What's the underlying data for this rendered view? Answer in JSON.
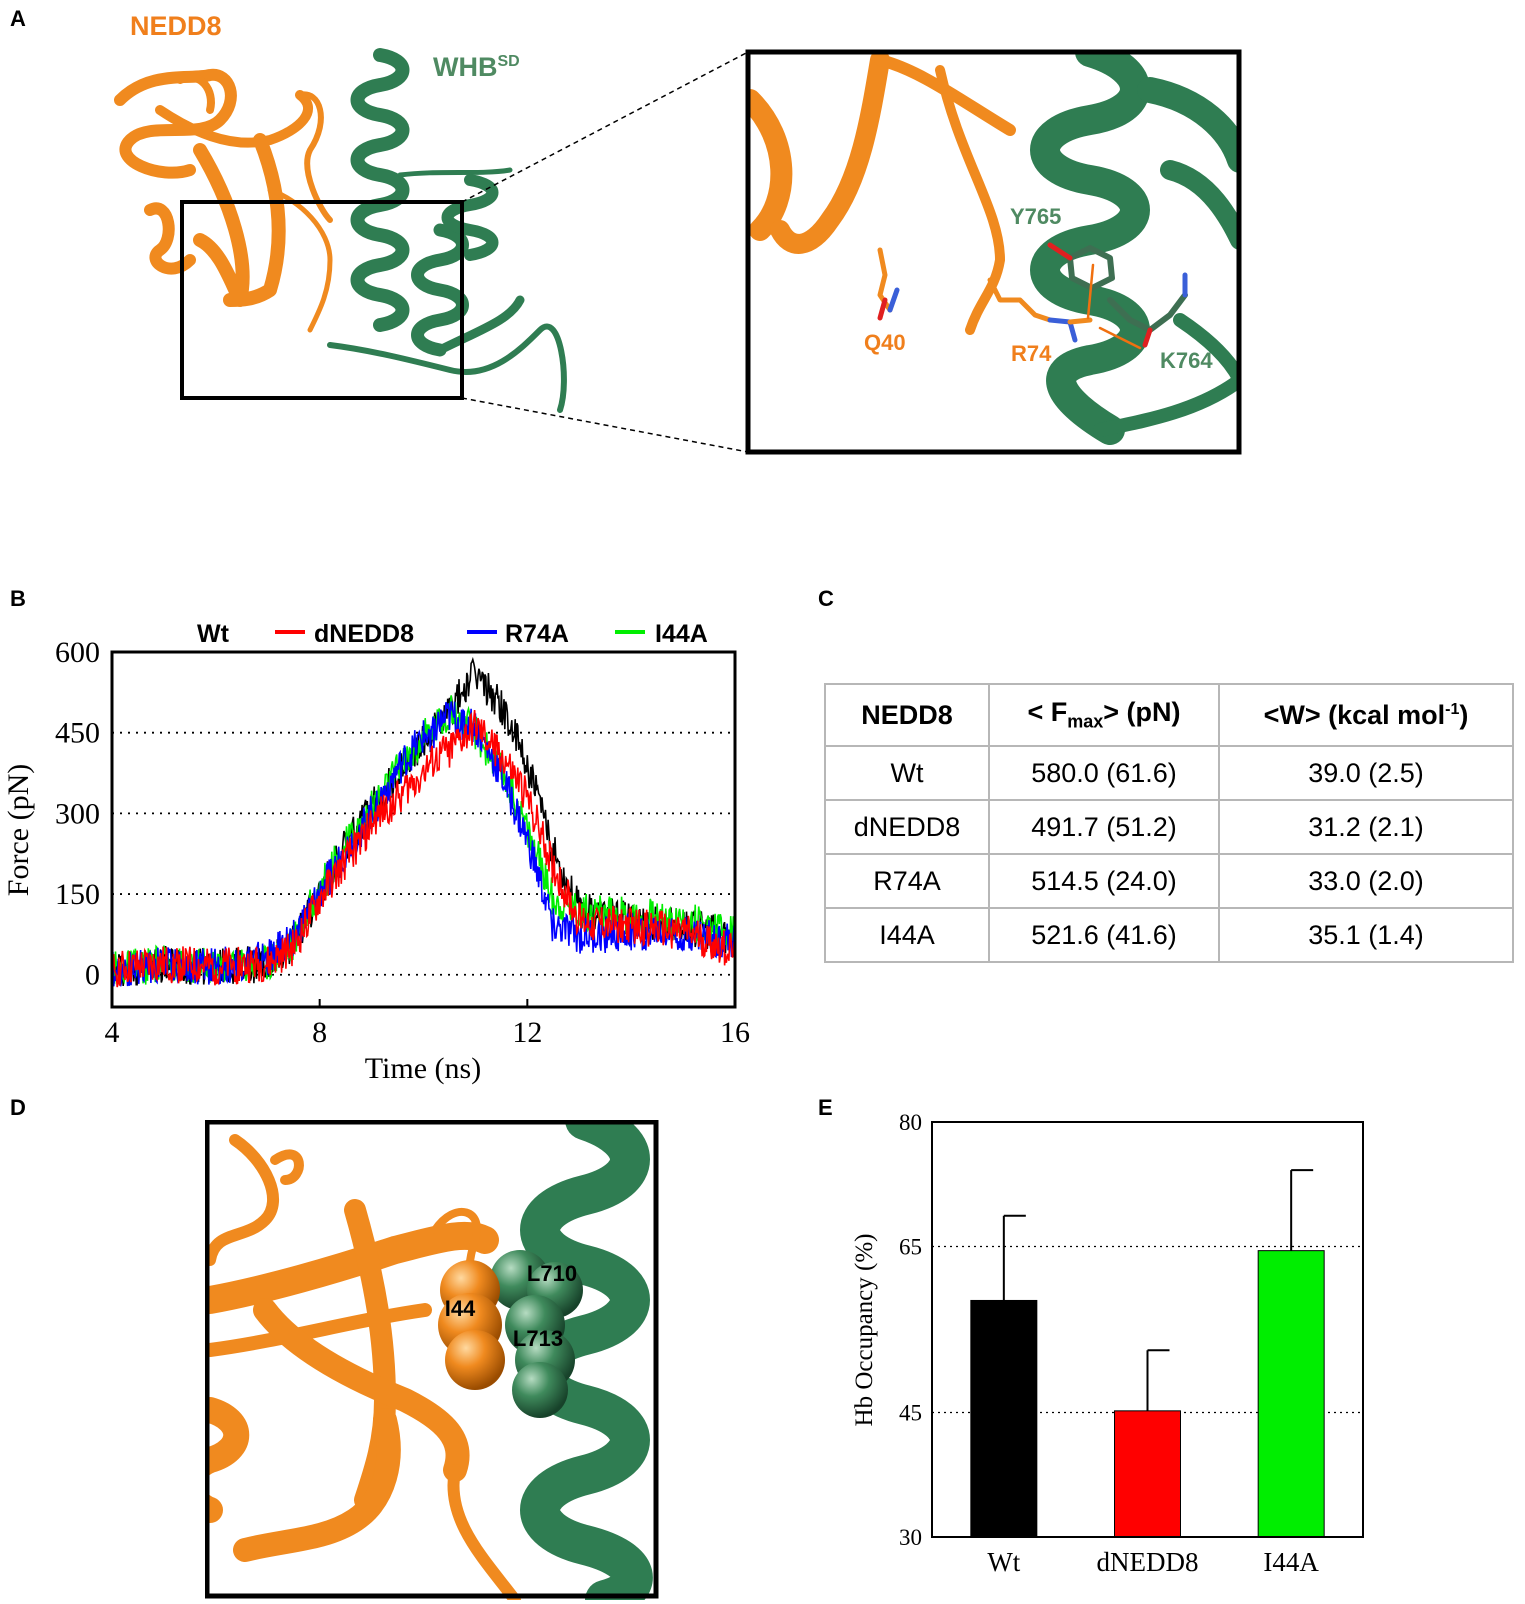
{
  "panels": {
    "a": "A",
    "b": "B",
    "c": "C",
    "d": "D",
    "e": "E"
  },
  "panel_a": {
    "nedd8_label": "NEDD8",
    "whb_label": "WHB",
    "whb_superscript": "SD",
    "residues": {
      "q40": "Q40",
      "r74": "R74",
      "y765": "Y765",
      "k764": "K764"
    }
  },
  "panel_d": {
    "residues": {
      "i44": "I44",
      "l710": "L710",
      "l713": "L713"
    }
  },
  "colors": {
    "nedd8": "#f07f1c",
    "whb": "#2e7d4f",
    "wt": "#000000",
    "dnedd8": "#ff0000",
    "r74a": "#0000ff",
    "i44a": "#00ee00"
  },
  "table": {
    "headers": {
      "col1": "NEDD8",
      "col2_pre": "< F",
      "col2_sub": "max",
      "col2_post": "> (pN)",
      "col3_pre": "<W> (kcal mol",
      "col3_sup": "-1",
      "col3_post": ")"
    },
    "rows": [
      {
        "name": "Wt",
        "fmax": "580.0 (61.6)",
        "w": "39.0 (2.5)"
      },
      {
        "name": "dNEDD8",
        "fmax": "491.7 (51.2)",
        "w": "31.2 (2.1)"
      },
      {
        "name": "R74A",
        "fmax": "514.5 (24.0)",
        "w": "33.0 (2.0)"
      },
      {
        "name": "I44A",
        "fmax": "521.6 (41.6)",
        "w": "35.1 (1.4)"
      }
    ]
  },
  "chart_data": [
    {
      "type": "line",
      "xlabel": "Time (ns)",
      "ylabel": "Force (pN)",
      "xlim": [
        4,
        16
      ],
      "ylim": [
        -60,
        600
      ],
      "xticks": [
        "4",
        "8",
        "12",
        "16"
      ],
      "yticks": [
        "0",
        "150",
        "300",
        "450",
        "600"
      ],
      "grid_y_dotted": [
        0,
        150,
        300,
        450
      ],
      "legend_position": "top",
      "x": [
        4,
        5,
        6,
        7,
        7.5,
        8,
        8.5,
        9,
        9.5,
        10,
        10.5,
        11,
        11.5,
        12,
        12.5,
        13,
        14,
        15,
        16
      ],
      "series": [
        {
          "name": "Wt",
          "values": [
            10,
            20,
            15,
            20,
            60,
            150,
            240,
            310,
            370,
            430,
            490,
            560,
            500,
            390,
            230,
            120,
            100,
            90,
            70
          ]
        },
        {
          "name": "dNEDD8",
          "values": [
            10,
            20,
            15,
            20,
            50,
            140,
            210,
            280,
            330,
            380,
            420,
            460,
            410,
            330,
            200,
            100,
            90,
            80,
            40
          ]
        },
        {
          "name": "R74A",
          "values": [
            10,
            20,
            15,
            30,
            70,
            150,
            230,
            300,
            380,
            440,
            480,
            460,
            370,
            250,
            90,
            70,
            80,
            80,
            60
          ]
        },
        {
          "name": "I44A",
          "values": [
            10,
            20,
            15,
            25,
            60,
            160,
            240,
            310,
            380,
            440,
            490,
            450,
            380,
            270,
            140,
            120,
            110,
            100,
            80
          ]
        }
      ]
    },
    {
      "type": "bar",
      "ylabel": "Hb Occupancy (%)",
      "ylim": [
        30,
        80
      ],
      "yticks": [
        "30",
        "45",
        "65",
        "80"
      ],
      "grid_y_dotted": [
        45,
        65
      ],
      "categories": [
        "Wt",
        "dNEDD8",
        "I44A"
      ],
      "values": [
        58.5,
        45.2,
        64.5
      ],
      "errors": [
        10.2,
        7.3,
        9.7
      ]
    }
  ]
}
